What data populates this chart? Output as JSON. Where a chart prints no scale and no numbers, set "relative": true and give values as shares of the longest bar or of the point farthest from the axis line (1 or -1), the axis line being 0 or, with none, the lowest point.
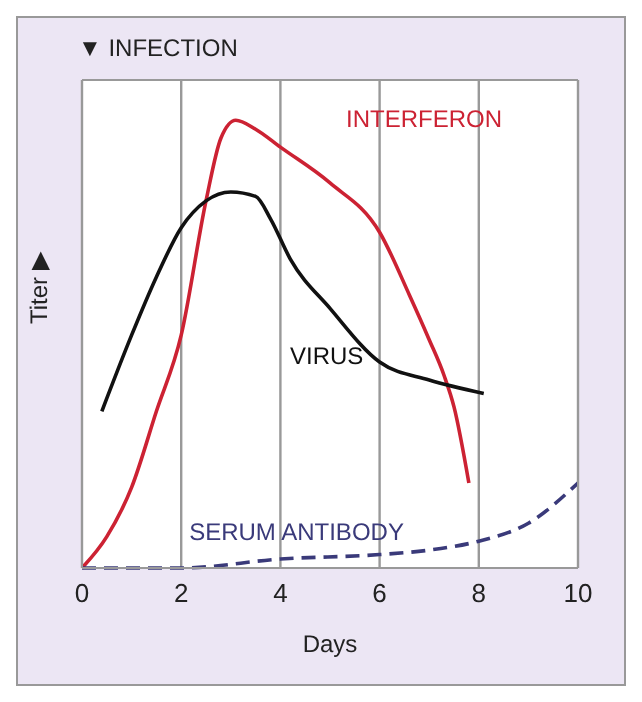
{
  "chart_data": {
    "type": "line",
    "relative": true,
    "xlabel": "Days",
    "ylabel": "Titer ▶",
    "annotations": [
      "▼ INFECTION"
    ],
    "xlim": [
      0,
      10
    ],
    "xticks": [
      0,
      2,
      4,
      6,
      8,
      10
    ],
    "grid": "x",
    "legend": false,
    "marker": "none",
    "series": [
      {
        "name": "INTERFERON",
        "color": "#cc2233",
        "line_style": "solid",
        "x": [
          0,
          0.5,
          1,
          1.5,
          2,
          2.5,
          2.8,
          3.1,
          3.5,
          4,
          5,
          6,
          6.6,
          7,
          7.3,
          7.5,
          7.8
        ],
        "values": [
          0,
          0.07,
          0.18,
          0.35,
          0.52,
          0.82,
          0.96,
          1,
          0.98,
          0.94,
          0.86,
          0.75,
          0.61,
          0.51,
          0.43,
          0.36,
          0.19
        ]
      },
      {
        "name": "VIRUS",
        "color": "#111111",
        "line_style": "solid",
        "x": [
          0.4,
          1,
          1.5,
          2,
          2.5,
          3,
          3.5,
          3.8,
          4.2,
          5,
          6,
          7,
          8.1
        ],
        "values": [
          0.35,
          0.52,
          0.65,
          0.76,
          0.82,
          0.84,
          0.83,
          0.78,
          0.69,
          0.58,
          0.46,
          0.42,
          0.39
        ]
      },
      {
        "name": "SERUM ANTIBODY",
        "color": "#3a3a7a",
        "line_style": "dashed",
        "x": [
          0,
          2,
          4,
          6,
          7,
          8,
          9,
          10
        ],
        "values": [
          0,
          0,
          0.02,
          0.03,
          0.04,
          0.06,
          0.1,
          0.19
        ]
      }
    ]
  }
}
